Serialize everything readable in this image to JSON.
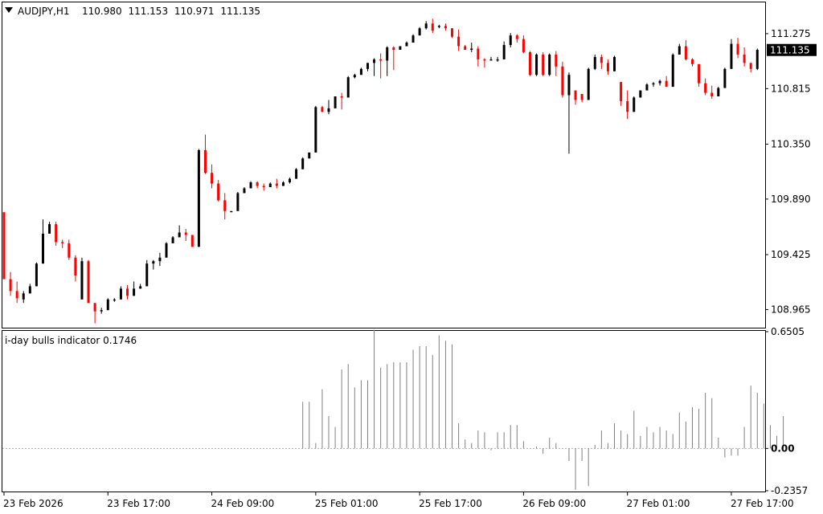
{
  "chart_data": [
    {
      "type": "candlestick",
      "title": "AUDJPY,H1",
      "ohlc_header": [
        "110.980",
        "111.153",
        "110.971",
        "111.135"
      ],
      "current_price": 111.135,
      "current_price_label": "111.135",
      "ylim": [
        108.82,
        111.53
      ],
      "y_ticks": [
        {
          "value": 111.275,
          "label": "111.275"
        },
        {
          "value": 110.815,
          "label": "110.815"
        },
        {
          "value": 110.35,
          "label": "110.350"
        },
        {
          "value": 109.89,
          "label": "109.890"
        },
        {
          "value": 109.425,
          "label": "109.425"
        },
        {
          "value": 108.965,
          "label": "108.965"
        }
      ],
      "colors": {
        "up": "#000000",
        "down": "#ff0000",
        "price_marker_bg": "#000000",
        "price_marker_text": "#ffffff"
      },
      "candles": [
        [
          109.78,
          109.78,
          109.22,
          109.22
        ],
        [
          109.22,
          109.28,
          109.08,
          109.12
        ],
        [
          109.12,
          109.2,
          109.02,
          109.06
        ],
        [
          109.05,
          109.12,
          109.02,
          109.1
        ],
        [
          109.1,
          109.18,
          109.1,
          109.16
        ],
        [
          109.16,
          109.36,
          109.16,
          109.35
        ],
        [
          109.35,
          109.72,
          109.35,
          109.6
        ],
        [
          109.6,
          109.7,
          109.6,
          109.68
        ],
        [
          109.68,
          109.7,
          109.5,
          109.53
        ],
        [
          109.53,
          109.55,
          109.48,
          109.52
        ],
        [
          109.52,
          109.55,
          109.38,
          109.4
        ],
        [
          109.4,
          109.42,
          109.2,
          109.25
        ],
        [
          109.05,
          109.4,
          109.05,
          109.37
        ],
        [
          109.37,
          109.38,
          109.02,
          109.02
        ],
        [
          109.02,
          109.02,
          108.85,
          108.95
        ],
        [
          108.95,
          108.98,
          108.93,
          108.96
        ],
        [
          108.96,
          109.06,
          108.96,
          109.05
        ],
        [
          109.05,
          109.06,
          109.03,
          109.05
        ],
        [
          109.05,
          109.16,
          109.05,
          109.14
        ],
        [
          109.14,
          109.17,
          109.05,
          109.08
        ],
        [
          109.08,
          109.2,
          109.08,
          109.14
        ],
        [
          109.14,
          109.18,
          109.14,
          109.16
        ],
        [
          109.16,
          109.38,
          109.16,
          109.35
        ],
        [
          109.35,
          109.38,
          109.3,
          109.37
        ],
        [
          109.37,
          109.44,
          109.33,
          109.4
        ],
        [
          109.4,
          109.53,
          109.4,
          109.52
        ],
        [
          109.52,
          109.58,
          109.52,
          109.57
        ],
        [
          109.57,
          109.67,
          109.57,
          109.61
        ],
        [
          109.61,
          109.64,
          109.54,
          109.59
        ],
        [
          109.59,
          109.59,
          109.49,
          109.49
        ],
        [
          109.49,
          110.31,
          109.49,
          110.3
        ],
        [
          110.3,
          110.43,
          110.1,
          110.11
        ],
        [
          110.11,
          110.18,
          109.98,
          110.02
        ],
        [
          110.02,
          110.05,
          109.87,
          109.88
        ],
        [
          109.88,
          109.94,
          109.72,
          109.79
        ],
        [
          109.79,
          109.79,
          109.79,
          109.79
        ],
        [
          109.79,
          109.95,
          109.79,
          109.94
        ],
        [
          109.94,
          109.99,
          109.94,
          109.98
        ],
        [
          109.98,
          110.04,
          109.98,
          110.03
        ],
        [
          110.03,
          110.04,
          109.98,
          110.0
        ],
        [
          110.0,
          110.02,
          109.96,
          109.99
        ],
        [
          109.99,
          110.03,
          109.99,
          110.02
        ],
        [
          110.02,
          110.06,
          109.98,
          110.0
        ],
        [
          110.0,
          110.04,
          110.0,
          110.03
        ],
        [
          110.03,
          110.07,
          110.02,
          110.06
        ],
        [
          110.06,
          110.15,
          110.06,
          110.14
        ],
        [
          110.14,
          110.24,
          110.14,
          110.23
        ],
        [
          110.23,
          110.28,
          110.23,
          110.28
        ],
        [
          110.28,
          110.67,
          110.28,
          110.66
        ],
        [
          110.66,
          110.67,
          110.62,
          110.62
        ],
        [
          110.62,
          110.72,
          110.6,
          110.65
        ],
        [
          110.65,
          110.75,
          110.65,
          110.75
        ],
        [
          110.75,
          110.78,
          110.64,
          110.74
        ],
        [
          110.74,
          110.92,
          110.74,
          110.91
        ],
        [
          110.91,
          110.94,
          110.9,
          110.93
        ],
        [
          110.93,
          110.99,
          110.93,
          110.98
        ],
        [
          110.98,
          111.03,
          110.96,
          111.03
        ],
        [
          111.03,
          111.07,
          110.92,
          111.06
        ],
        [
          111.06,
          111.11,
          110.9,
          111.05
        ],
        [
          111.05,
          111.17,
          110.92,
          111.16
        ],
        [
          111.16,
          111.17,
          110.97,
          111.14
        ],
        [
          111.14,
          111.17,
          111.14,
          111.17
        ],
        [
          111.17,
          111.21,
          111.17,
          111.2
        ],
        [
          111.2,
          111.27,
          111.2,
          111.26
        ],
        [
          111.26,
          111.33,
          111.26,
          111.32
        ],
        [
          111.32,
          111.38,
          111.31,
          111.36
        ],
        [
          111.36,
          111.4,
          111.28,
          111.3
        ],
        [
          111.34,
          111.35,
          111.32,
          111.34
        ],
        [
          111.34,
          111.36,
          111.3,
          111.32
        ],
        [
          111.32,
          111.32,
          111.24,
          111.25
        ],
        [
          111.25,
          111.31,
          111.13,
          111.17
        ],
        [
          111.17,
          111.18,
          111.14,
          111.14
        ],
        [
          111.14,
          111.2,
          111.12,
          111.15
        ],
        [
          111.15,
          111.17,
          111.0,
          111.06
        ],
        [
          111.06,
          111.07,
          110.99,
          111.05
        ],
        [
          111.05,
          111.08,
          111.05,
          111.06
        ],
        [
          111.06,
          111.08,
          111.04,
          111.06
        ],
        [
          111.06,
          111.21,
          111.06,
          111.18
        ],
        [
          111.18,
          111.28,
          111.16,
          111.26
        ],
        [
          111.26,
          111.27,
          111.2,
          111.23
        ],
        [
          111.23,
          111.26,
          111.11,
          111.12
        ],
        [
          111.12,
          111.13,
          110.92,
          110.93
        ],
        [
          110.93,
          111.11,
          110.92,
          111.1
        ],
        [
          111.1,
          111.12,
          110.92,
          110.93
        ],
        [
          110.93,
          111.11,
          110.92,
          111.1
        ],
        [
          111.1,
          111.13,
          110.92,
          111.0
        ],
        [
          111.0,
          111.04,
          110.74,
          110.76
        ],
        [
          110.76,
          110.95,
          110.27,
          110.93
        ],
        [
          110.8,
          110.8,
          110.68,
          110.72
        ],
        [
          110.77,
          110.77,
          110.7,
          110.72
        ],
        [
          110.72,
          110.99,
          110.72,
          110.98
        ],
        [
          110.98,
          111.1,
          110.97,
          111.08
        ],
        [
          111.08,
          111.1,
          110.98,
          111.03
        ],
        [
          111.03,
          111.06,
          110.93,
          110.96
        ],
        [
          110.96,
          111.09,
          110.96,
          111.08
        ],
        [
          110.87,
          110.87,
          110.67,
          110.71
        ],
        [
          110.71,
          110.8,
          110.56,
          110.62
        ],
        [
          110.62,
          110.75,
          110.62,
          110.74
        ],
        [
          110.74,
          110.8,
          110.74,
          110.8
        ],
        [
          110.8,
          110.86,
          110.8,
          110.85
        ],
        [
          110.85,
          110.87,
          110.83,
          110.86
        ],
        [
          110.86,
          110.89,
          110.84,
          110.88
        ],
        [
          110.88,
          110.92,
          110.83,
          110.83
        ],
        [
          110.83,
          111.11,
          110.83,
          111.1
        ],
        [
          111.1,
          111.19,
          111.1,
          111.17
        ],
        [
          111.17,
          111.22,
          111.05,
          111.06
        ],
        [
          111.06,
          111.07,
          111.0,
          111.02
        ],
        [
          111.02,
          111.02,
          110.83,
          110.86
        ],
        [
          110.86,
          110.9,
          110.76,
          110.78
        ],
        [
          110.78,
          110.84,
          110.73,
          110.75
        ],
        [
          110.75,
          110.83,
          110.75,
          110.82
        ],
        [
          110.82,
          110.99,
          110.82,
          110.98
        ],
        [
          110.98,
          111.23,
          110.98,
          111.19
        ],
        [
          111.19,
          111.24,
          111.07,
          111.1
        ],
        [
          111.1,
          111.16,
          111.0,
          111.03
        ],
        [
          111.03,
          111.03,
          110.95,
          110.98
        ],
        [
          110.98,
          111.15,
          110.97,
          111.14
        ]
      ],
      "x_tick_labels": [
        {
          "index": 0,
          "label": "23 Feb 2026"
        },
        {
          "index": 16,
          "label": "23 Feb 17:00"
        },
        {
          "index": 32,
          "label": "24 Feb 09:00"
        },
        {
          "index": 48,
          "label": "25 Feb 01:00"
        },
        {
          "index": 64,
          "label": "25 Feb 17:00"
        },
        {
          "index": 80,
          "label": "26 Feb 09:00"
        },
        {
          "index": 96,
          "label": "27 Feb 01:00"
        },
        {
          "index": 112,
          "label": "27 Feb 17:00"
        }
      ]
    },
    {
      "type": "histogram",
      "title": "i-day bulls indicator 0.1746",
      "ylim": [
        -0.2357,
        0.6505
      ],
      "y_ticks": [
        {
          "value": 0.6505,
          "label": "0.6505",
          "bold": false
        },
        {
          "value": 0.0,
          "label": "0.00",
          "bold": true
        },
        {
          "value": -0.2357,
          "label": "-0.2357",
          "bold": false
        }
      ],
      "zero_line_style": "dotted",
      "bar_color": "#808080",
      "values": [
        0,
        0,
        0,
        0,
        0,
        0,
        0,
        0,
        0,
        0,
        0,
        0,
        0,
        0,
        0,
        0,
        0,
        0,
        0,
        0,
        0,
        0,
        0,
        0,
        0,
        0,
        0,
        0,
        0,
        0,
        0,
        0,
        0,
        0,
        0,
        0,
        0,
        0,
        0,
        0,
        0,
        0,
        0,
        0,
        0,
        0,
        0.26,
        0.26,
        0.03,
        0.33,
        0.18,
        0.12,
        0.44,
        0.47,
        0.34,
        0.38,
        0.38,
        0.66,
        0.45,
        0.47,
        0.48,
        0.48,
        0.48,
        0.55,
        0.57,
        0.57,
        0.52,
        0.63,
        0.6,
        0.58,
        0.14,
        0.05,
        0.03,
        0.1,
        0.09,
        -0.01,
        0.09,
        0.09,
        0.13,
        0.13,
        0.04,
        0.0,
        0.01,
        -0.03,
        0.06,
        0.03,
        0.0,
        -0.07,
        -0.23,
        -0.07,
        -0.21,
        0.02,
        0.1,
        0.03,
        0.14,
        0.1,
        0.08,
        0.21,
        0.07,
        0.12,
        0.09,
        0.12,
        0.1,
        0.08,
        0.2,
        0.15,
        0.23,
        0.22,
        0.31,
        0.28,
        0.06,
        -0.05,
        -0.04,
        -0.04,
        0.12,
        0.35,
        0.31,
        0.25,
        0.13,
        0.07,
        0.18
      ]
    }
  ]
}
